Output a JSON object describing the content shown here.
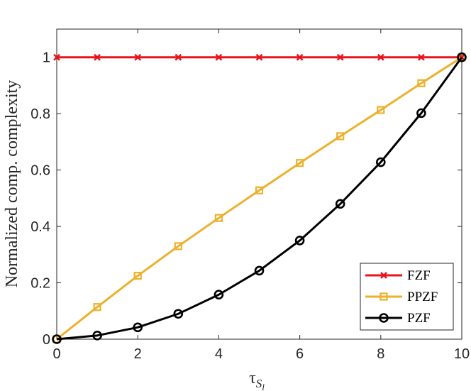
{
  "chart_data": {
    "type": "line",
    "title": "",
    "xlabel_main": "τ",
    "xlabel_sub": "S",
    "xlabel_subsub": "l",
    "ylabel": "Normalized comp. complexity",
    "xlim": [
      0,
      10
    ],
    "ylim": [
      0,
      1.1
    ],
    "xticks": [
      0,
      2,
      4,
      6,
      8,
      10
    ],
    "yticks": [
      0,
      0.2,
      0.4,
      0.6,
      0.8,
      1
    ],
    "xtick_labels": [
      "0",
      "2",
      "4",
      "6",
      "8",
      "10"
    ],
    "ytick_labels": [
      "0",
      "0.2",
      "0.4",
      "0.6",
      "0.8",
      "1"
    ],
    "grid": false,
    "legend_position": "bottom-right",
    "x": [
      0,
      1,
      2,
      3,
      4,
      5,
      6,
      7,
      8,
      9,
      10
    ],
    "series": [
      {
        "name": "FZF",
        "color": "#e8141b",
        "marker": "x-marker",
        "values": [
          1,
          1,
          1,
          1,
          1,
          1,
          1,
          1,
          1,
          1,
          1
        ]
      },
      {
        "name": "PPZF",
        "color": "#ecb12d",
        "marker": "square-marker",
        "values": [
          0,
          0.114,
          0.225,
          0.33,
          0.43,
          0.528,
          0.625,
          0.72,
          0.813,
          0.908,
          1
        ]
      },
      {
        "name": "PZF",
        "color": "#000000",
        "marker": "circle-marker",
        "values": [
          0,
          0.013,
          0.042,
          0.09,
          0.158,
          0.243,
          0.35,
          0.48,
          0.628,
          0.802,
          1
        ]
      }
    ]
  }
}
